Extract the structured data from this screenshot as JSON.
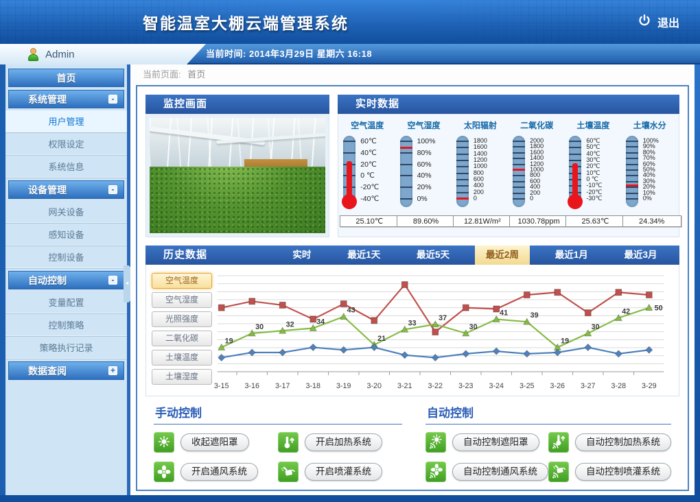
{
  "app": {
    "title": "智能温室大棚云端管理系统",
    "logout": "退出"
  },
  "userbar": {
    "username": "Admin",
    "time_label": "当前时间:",
    "time_value": "2014年3月29日 星期六 16:18"
  },
  "breadcrumb": {
    "label": "当前页面:",
    "page": "首页"
  },
  "sidebar": {
    "home": "首页",
    "sections": [
      {
        "title": "系统管理",
        "toggle": "-",
        "items": [
          {
            "label": "用户管理"
          },
          {
            "label": "权限设定"
          },
          {
            "label": "系统信息"
          }
        ]
      },
      {
        "title": "设备管理",
        "toggle": "-",
        "items": [
          {
            "label": "网关设备"
          },
          {
            "label": "感知设备"
          },
          {
            "label": "控制设备"
          }
        ]
      },
      {
        "title": "自动控制",
        "toggle": "-",
        "items": [
          {
            "label": "变量配置"
          },
          {
            "label": "控制策略"
          },
          {
            "label": "策略执行记录"
          }
        ]
      },
      {
        "title": "数据查阅",
        "toggle": "+",
        "items": []
      }
    ],
    "collapse_arrow": "◄"
  },
  "monitor": {
    "title": "监控画面"
  },
  "realtime": {
    "title": "实时数据",
    "gauges": [
      {
        "name": "空气温度",
        "style": "fill",
        "value": "25.10℃",
        "scale": [
          "60℃",
          "40℃",
          "20℃",
          "0 ℃",
          "-20℃",
          "-40℃"
        ]
      },
      {
        "name": "空气湿度",
        "style": "line",
        "value": "89.60%",
        "scale": [
          "100%",
          "80%",
          "60%",
          "40%",
          "20%",
          "0%"
        ]
      },
      {
        "name": "太阳辐射",
        "style": "line",
        "value": "12.81W/m²",
        "scale": [
          "1800",
          "1600",
          "1400",
          "1200",
          "1000",
          "800",
          "600",
          "400",
          "200",
          "0"
        ]
      },
      {
        "name": "二氧化碳",
        "style": "line",
        "value": "1030.78ppm",
        "scale": [
          "2000",
          "1800",
          "1600",
          "1400",
          "1200",
          "1000",
          "800",
          "600",
          "400",
          "200",
          "0"
        ]
      },
      {
        "name": "土壤温度",
        "style": "fill",
        "value": "25.63℃",
        "scale": [
          "60℃",
          "50℃",
          "40℃",
          "30℃",
          "20℃",
          "10℃",
          "0 ℃",
          "-10℃",
          "-20℃",
          "-30℃"
        ]
      },
      {
        "name": "土壤水分",
        "style": "line",
        "value": "24.34%",
        "scale": [
          "100%",
          "90%",
          "80%",
          "70%",
          "60%",
          "50%",
          "40%",
          "30%",
          "20%",
          "10%",
          "0%"
        ]
      }
    ]
  },
  "history": {
    "title": "历史数据",
    "tabs": [
      {
        "label": "实时"
      },
      {
        "label": "最近1天"
      },
      {
        "label": "最近5天"
      },
      {
        "label": "最近2周",
        "active": true
      },
      {
        "label": "最近1月"
      },
      {
        "label": "最近3月"
      }
    ],
    "series_buttons": [
      {
        "label": "空气温度",
        "active": true
      },
      {
        "label": "空气湿度"
      },
      {
        "label": "光照强度"
      },
      {
        "label": "二氧化碳"
      },
      {
        "label": "土壤温度"
      },
      {
        "label": "土壤湿度"
      }
    ]
  },
  "chart_data": {
    "type": "line",
    "x": [
      "3-15",
      "3-16",
      "3-17",
      "3-18",
      "3-19",
      "3-20",
      "3-21",
      "3-22",
      "3-23",
      "3-24",
      "3-25",
      "3-26",
      "3-27",
      "3-28",
      "3-29"
    ],
    "series": [
      {
        "name": "red-square-series",
        "color": "#c0504d",
        "marker": "square",
        "values": [
          50,
          55,
          52,
          41,
          53,
          40,
          68,
          31,
          50,
          49,
          60,
          62,
          46,
          62,
          60
        ]
      },
      {
        "name": "green-triangle-series",
        "color": "#86bb45",
        "marker": "triangle",
        "show_labels": true,
        "values": [
          19,
          30,
          32,
          34,
          43,
          21,
          33,
          37,
          30,
          41,
          39,
          19,
          30,
          42,
          50
        ]
      },
      {
        "name": "blue-diamond-series",
        "color": "#4f81bd",
        "marker": "diamond",
        "values": [
          11,
          15,
          15,
          19,
          17,
          19,
          13,
          11,
          14,
          16,
          14,
          15,
          19,
          14,
          17
        ]
      }
    ],
    "ylim": [
      0,
      75
    ],
    "grid": true,
    "title": "",
    "xlabel": "",
    "ylabel": "",
    "legend": "none"
  },
  "manual": {
    "title": "手动控制",
    "buttons": [
      {
        "icon": "sunshade",
        "label": "收起遮阳罩"
      },
      {
        "icon": "heater",
        "label": "开启加热系统"
      },
      {
        "icon": "fan",
        "label": "开启通风系统"
      },
      {
        "icon": "sprinkler",
        "label": "开启喷灌系统"
      }
    ]
  },
  "auto": {
    "title": "自动控制",
    "buttons": [
      {
        "icon": "sunshade-auto",
        "label": "自动控制遮阳罩"
      },
      {
        "icon": "heater-auto",
        "label": "自动控制加热系统"
      },
      {
        "icon": "fan-auto",
        "label": "自动控制通风系统"
      },
      {
        "icon": "sprinkler-auto",
        "label": "自动控制喷灌系统"
      }
    ]
  },
  "colors": {
    "panel_header": "#2b62b0",
    "active_tab_bg": "#f6e3a6",
    "active_tab_text": "#8f5c1c",
    "mercury_red": "#e8151d",
    "tube_blue": "#7da7cc",
    "device_icon_green": "#4caf2e",
    "accent_blue": "#2a5db8"
  }
}
